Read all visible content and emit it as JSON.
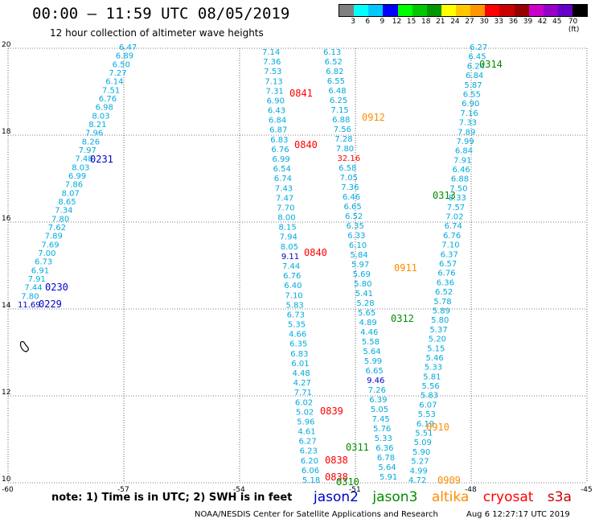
{
  "header": {
    "title": "00:00 – 11:59 UTC 08/05/2019",
    "subtitle": "12 hour collection of altimeter wave heights"
  },
  "colorbar": {
    "colors": [
      "#808080",
      "#00ffff",
      "#00c8ff",
      "#0000ff",
      "#00ff00",
      "#00c800",
      "#009600",
      "#ffff00",
      "#ffc800",
      "#ff9600",
      "#ff0000",
      "#c80000",
      "#960000",
      "#c800c8",
      "#9600c8",
      "#6400c8",
      "#000000"
    ],
    "labels": [
      "3",
      "6",
      "9",
      "12",
      "15",
      "18",
      "21",
      "24",
      "27",
      "30",
      "33",
      "36",
      "39",
      "42",
      "45",
      "70 (ft)"
    ]
  },
  "axes": {
    "x_ticks": [
      "-60",
      "-57",
      "-54",
      "-51",
      "-48",
      "-45"
    ],
    "y_ticks": [
      "20",
      "18",
      "16",
      "14",
      "12",
      "10"
    ]
  },
  "satellites": {
    "jason2": "jason2",
    "jason3": "jason3",
    "altika": "altika",
    "cryosat": "cryosat",
    "s3a": "s3a"
  },
  "colors": {
    "jason2": "#0000c8",
    "jason3": "#008c00",
    "altika": "#ff8c00",
    "cryosat": "#ff0000",
    "s3a": "#c80000",
    "value": "#00aadd"
  },
  "footer": {
    "note": "note:  1) Time is in UTC;  2) SWH is in feet",
    "credit": "NOAA/NESDIS Center for Satellite Applications and Research",
    "date": "Aug  6 12:27:17 UTC 2019"
  },
  "tracks": [
    {
      "id": "t1",
      "values": [
        "6.47",
        "6.89",
        "6.50",
        "7.27",
        "6.14",
        "7.51",
        "6.76",
        "6.98",
        "8.03",
        "8.21",
        "7.96",
        "8.26",
        "7.97",
        "7.48",
        "8.03",
        "6.99",
        "7.86",
        "8.07",
        "8.65",
        "7.34",
        "7.80",
        "7.62",
        "7.89",
        "7.69",
        "7.00",
        "6.73",
        "6.91",
        "7.91",
        "7.44",
        "7.80",
        "11.69"
      ]
    },
    {
      "id": "t2",
      "values": [
        "7.14",
        "7.36",
        "7.53",
        "7.13",
        "7.31",
        "6.90",
        "6.43",
        "6.84",
        "6.87",
        "6.83",
        "6.76",
        "6.99",
        "6.54",
        "6.74",
        "7.43",
        "7.47",
        "7.70",
        "8.00",
        "8.15",
        "7.94",
        "8.05",
        "9.11",
        "7.44",
        "6.76",
        "6.40",
        "7.10",
        "5.83",
        "6.73",
        "5.35",
        "4.66",
        "6.35",
        "6.83",
        "6.01",
        "4.48",
        "4.27",
        "7.71",
        "6.02",
        "5.02",
        "5.96",
        "4.61",
        "6.27",
        "6.23",
        "6.20",
        "6.06",
        "5.18"
      ]
    },
    {
      "id": "t3",
      "values": [
        "6.13",
        "6.52",
        "6.82",
        "6.55",
        "6.48",
        "6.25",
        "7.15",
        "6.88",
        "7.56",
        "7.28",
        "7.80",
        "32.16",
        "6.58",
        "7.05",
        "7.36",
        "6.46",
        "6.65",
        "6.52",
        "6.35",
        "6.33",
        "6.10",
        "5.84",
        "5.97",
        "5.69",
        "5.80",
        "5.41",
        "5.28",
        "5.65",
        "4.89",
        "4.46",
        "5.58",
        "5.64",
        "5.99",
        "6.65",
        "9.46",
        "7.26",
        "6.39",
        "5.05",
        "7.45",
        "5.76",
        "5.33",
        "6.36",
        "6.78",
        "5.64",
        "5.91"
      ]
    },
    {
      "id": "t4",
      "values": [
        "6.27",
        "6.45",
        "6.24",
        "6.84",
        "5.87",
        "6.55",
        "6.90",
        "7.16",
        "7.33",
        "7.89",
        "7.99",
        "6.84",
        "7.91",
        "6.46",
        "6.88",
        "7.50",
        "8.33",
        "7.57",
        "7.02",
        "6.74",
        "6.76",
        "7.10",
        "6.37",
        "6.57",
        "6.76",
        "6.36",
        "6.52",
        "5.78",
        "5.89",
        "5.80",
        "5.37",
        "5.20",
        "5.15",
        "5.46",
        "5.33",
        "5.81",
        "5.56",
        "5.83",
        "6.07",
        "5.53",
        "6.19",
        "5.51",
        "5.09",
        "5.90",
        "5.27",
        "4.99",
        "4.72"
      ]
    }
  ],
  "tags": [
    {
      "text": "0314",
      "sat": "jason3"
    },
    {
      "text": "0841",
      "sat": "cryosat"
    },
    {
      "text": "0912",
      "sat": "altika"
    },
    {
      "text": "0231",
      "sat": "jason2"
    },
    {
      "text": "0840",
      "sat": "cryosat"
    },
    {
      "text": "0313",
      "sat": "jason3"
    },
    {
      "text": "0840",
      "sat": "cryosat"
    },
    {
      "text": "0911",
      "sat": "altika"
    },
    {
      "text": "0230",
      "sat": "jason2"
    },
    {
      "text": "0229",
      "sat": "jason2"
    },
    {
      "text": "0312",
      "sat": "jason3"
    },
    {
      "text": "0839",
      "sat": "cryosat"
    },
    {
      "text": "0910",
      "sat": "altika"
    },
    {
      "text": "0311",
      "sat": "jason3"
    },
    {
      "text": "0838",
      "sat": "cryosat"
    },
    {
      "text": "0838",
      "sat": "cryosat"
    },
    {
      "text": "0310",
      "sat": "jason3"
    },
    {
      "text": "0909",
      "sat": "altika"
    }
  ]
}
